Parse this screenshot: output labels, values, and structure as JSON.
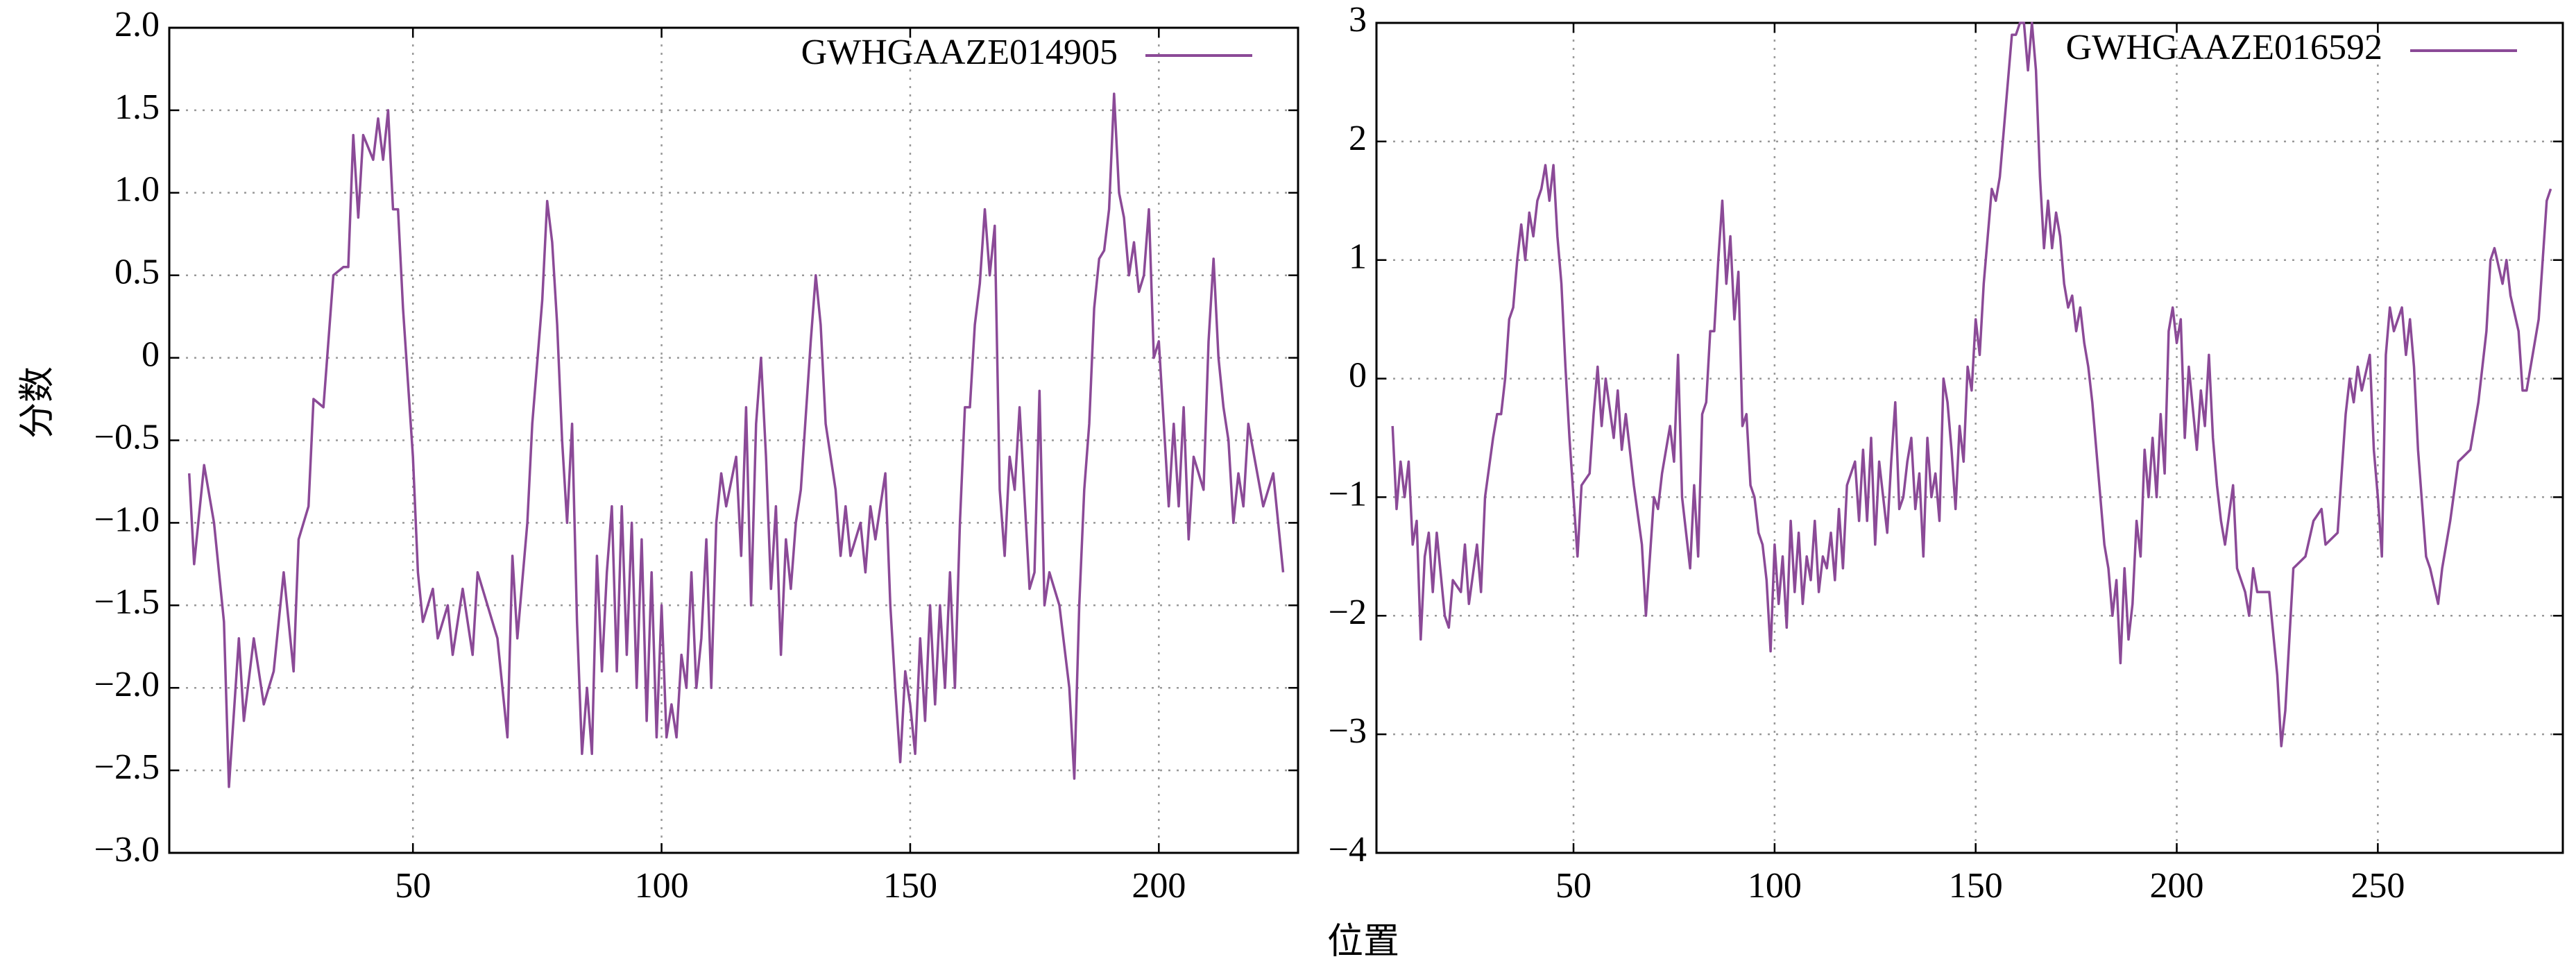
{
  "xlabel": "位置",
  "ylabel": "分数",
  "chart_data": [
    {
      "type": "line",
      "xlim": [
        1,
        228
      ],
      "ylim": [
        -3,
        2
      ],
      "xticks": [
        50,
        100,
        150,
        200
      ],
      "yticks": [
        {
          "value": -3,
          "label": "−3.0"
        },
        {
          "value": -2.5,
          "label": "−2.5"
        },
        {
          "value": -2,
          "label": "−2.0"
        },
        {
          "value": -1.5,
          "label": "−1.5"
        },
        {
          "value": -1,
          "label": "−1.0"
        },
        {
          "value": -0.5,
          "label": "−0.5"
        },
        0,
        0.5,
        {
          "value": 1,
          "label": "1.0"
        },
        1.5,
        {
          "value": 2,
          "label": "2.0"
        }
      ],
      "grid": true,
      "legend": "upper right",
      "x": [
        5,
        6,
        8,
        10,
        12,
        13,
        15,
        16,
        18,
        20,
        22,
        24,
        26,
        27,
        29,
        30,
        32,
        34,
        36,
        37,
        38,
        39,
        40,
        42,
        43,
        44,
        45,
        46,
        47,
        48,
        50,
        51,
        52,
        54,
        55,
        57,
        58,
        60,
        62,
        63,
        65,
        67,
        69,
        70,
        71,
        73,
        74,
        76,
        77,
        78,
        79,
        80,
        81,
        82,
        83,
        84,
        85,
        86,
        87,
        88,
        89,
        90,
        91,
        92,
        93,
        94,
        95,
        96,
        97,
        98,
        99,
        100,
        101,
        102,
        103,
        104,
        105,
        106,
        107,
        108,
        109,
        110,
        111,
        112,
        113,
        115,
        116,
        117,
        118,
        119,
        120,
        121,
        122,
        123,
        124,
        125,
        126,
        127,
        128,
        130,
        131,
        132,
        133,
        135,
        136,
        137,
        138,
        140,
        141,
        142,
        143,
        144,
        145,
        146,
        147,
        148,
        149,
        150,
        151,
        152,
        153,
        154,
        155,
        156,
        157,
        158,
        159,
        160,
        161,
        162,
        163,
        164,
        165,
        166,
        167,
        168,
        169,
        170,
        171,
        172,
        174,
        175,
        176,
        177,
        178,
        180,
        182,
        183,
        184,
        185,
        186,
        187,
        188,
        189,
        190,
        191,
        192,
        193,
        194,
        195,
        196,
        197,
        198,
        199,
        200,
        201,
        202,
        203,
        204,
        205,
        206,
        207,
        209,
        210,
        211,
        212,
        213,
        214,
        215,
        216,
        217,
        218,
        221,
        223,
        225
      ],
      "series": [
        {
          "name": "GWHGAAZE014905",
          "color": "#8b4a97",
          "values": [
            -0.7,
            -1.25,
            -0.65,
            -1.0,
            -1.6,
            -2.6,
            -1.7,
            -2.2,
            -1.7,
            -2.1,
            -1.9,
            -1.3,
            -1.9,
            -1.1,
            -0.9,
            -0.25,
            -0.3,
            0.5,
            0.55,
            0.55,
            1.35,
            0.85,
            1.35,
            1.2,
            1.45,
            1.2,
            1.5,
            0.9,
            0.9,
            0.3,
            -0.6,
            -1.3,
            -1.6,
            -1.4,
            -1.7,
            -1.5,
            -1.8,
            -1.4,
            -1.8,
            -1.3,
            -1.5,
            -1.7,
            -2.3,
            -1.2,
            -1.7,
            -1.0,
            -0.4,
            0.35,
            0.95,
            0.7,
            0.2,
            -0.5,
            -1.0,
            -0.4,
            -1.6,
            -2.4,
            -2.0,
            -2.4,
            -1.2,
            -1.9,
            -1.3,
            -0.9,
            -1.9,
            -0.9,
            -1.8,
            -1.0,
            -2.0,
            -1.1,
            -2.2,
            -1.3,
            -2.3,
            -1.5,
            -2.3,
            -2.1,
            -2.3,
            -1.8,
            -2.0,
            -1.3,
            -2.0,
            -1.7,
            -1.1,
            -2.0,
            -1.0,
            -0.7,
            -0.9,
            -0.6,
            -1.2,
            -0.3,
            -1.5,
            -0.4,
            0.0,
            -0.6,
            -1.4,
            -0.9,
            -1.8,
            -1.1,
            -1.4,
            -1.0,
            -0.8,
            0.1,
            0.5,
            0.2,
            -0.4,
            -0.8,
            -1.2,
            -0.9,
            -1.2,
            -1.0,
            -1.3,
            -0.9,
            -1.1,
            -0.9,
            -0.7,
            -1.5,
            -2.0,
            -2.45,
            -1.9,
            -2.1,
            -2.4,
            -1.7,
            -2.2,
            -1.5,
            -2.1,
            -1.5,
            -2.0,
            -1.3,
            -2.0,
            -1.0,
            -0.3,
            -0.3,
            0.2,
            0.45,
            0.9,
            0.5,
            0.8,
            -0.8,
            -1.2,
            -0.6,
            -0.8,
            -0.3,
            -1.4,
            -1.3,
            -0.2,
            -1.5,
            -1.3,
            -1.5,
            -2.0,
            -2.55,
            -1.5,
            -0.8,
            -0.4,
            0.3,
            0.6,
            0.65,
            0.9,
            1.6,
            1.0,
            0.85,
            0.5,
            0.7,
            0.4,
            0.5,
            0.9,
            0.0,
            0.1,
            -0.4,
            -0.9,
            -0.4,
            -0.9,
            -0.3,
            -1.1,
            -0.6,
            -0.8,
            0.1,
            0.6,
            0.0,
            -0.3,
            -0.5,
            -1.0,
            -0.7,
            -0.9,
            -0.4,
            -0.9,
            -0.7,
            -1.3
          ]
        }
      ]
    },
    {
      "type": "line",
      "xlim": [
        1,
        296
      ],
      "ylim": [
        -4,
        3
      ],
      "xticks": [
        50,
        100,
        150,
        200,
        250
      ],
      "yticks": [
        {
          "value": -4,
          "label": "−4"
        },
        {
          "value": -3,
          "label": "−3"
        },
        {
          "value": -2,
          "label": "−2"
        },
        {
          "value": -1,
          "label": "−1"
        },
        0,
        1,
        2,
        3
      ],
      "grid": true,
      "legend": "upper right",
      "x": [
        5,
        6,
        7,
        8,
        9,
        10,
        11,
        12,
        13,
        14,
        15,
        16,
        18,
        19,
        20,
        22,
        23,
        24,
        26,
        27,
        28,
        30,
        31,
        32,
        33,
        34,
        35,
        36,
        37,
        38,
        39,
        40,
        41,
        42,
        43,
        44,
        45,
        46,
        47,
        48,
        49,
        50,
        51,
        52,
        54,
        55,
        56,
        57,
        58,
        60,
        61,
        62,
        63,
        65,
        67,
        68,
        70,
        71,
        72,
        74,
        75,
        76,
        77,
        78,
        79,
        80,
        81,
        82,
        83,
        84,
        85,
        86,
        87,
        88,
        89,
        90,
        91,
        92,
        93,
        94,
        95,
        96,
        97,
        98,
        99,
        100,
        101,
        102,
        103,
        104,
        105,
        106,
        107,
        108,
        109,
        110,
        111,
        112,
        113,
        114,
        115,
        116,
        117,
        118,
        120,
        121,
        122,
        123,
        124,
        125,
        126,
        127,
        128,
        129,
        130,
        131,
        132,
        133,
        134,
        135,
        136,
        137,
        138,
        139,
        140,
        141,
        142,
        143,
        144,
        145,
        146,
        147,
        148,
        149,
        150,
        151,
        152,
        153,
        154,
        155,
        156,
        157,
        158,
        159,
        160,
        161,
        162,
        163,
        164,
        165,
        166,
        167,
        168,
        169,
        170,
        171,
        172,
        173,
        174,
        175,
        176,
        177,
        178,
        179,
        180,
        181,
        182,
        183,
        184,
        185,
        186,
        187,
        188,
        189,
        190,
        191,
        192,
        193,
        194,
        195,
        196,
        197,
        198,
        199,
        200,
        201,
        202,
        203,
        205,
        206,
        207,
        208,
        209,
        210,
        211,
        212,
        214,
        215,
        216,
        217,
        218,
        219,
        220,
        223,
        225,
        226,
        227,
        228,
        229,
        232,
        234,
        236,
        237,
        240,
        241,
        242,
        243,
        244,
        245,
        246,
        248,
        249,
        250,
        251,
        252,
        253,
        254,
        256,
        257,
        258,
        259,
        260,
        262,
        263,
        265,
        266,
        268,
        270,
        273,
        275,
        277,
        278,
        279,
        281,
        282,
        283,
        285,
        286,
        287,
        290,
        291,
        292,
        293
      ],
      "series": [
        {
          "name": "GWHGAAZE016592",
          "color": "#8b4a97",
          "values": [
            -0.4,
            -1.1,
            -0.7,
            -1.0,
            -0.7,
            -1.4,
            -1.2,
            -2.2,
            -1.5,
            -1.3,
            -1.8,
            -1.3,
            -2.0,
            -2.1,
            -1.7,
            -1.8,
            -1.4,
            -1.9,
            -1.4,
            -1.8,
            -1.0,
            -0.5,
            -0.3,
            -0.3,
            0.0,
            0.5,
            0.6,
            1.0,
            1.3,
            1.0,
            1.4,
            1.2,
            1.5,
            1.6,
            1.8,
            1.5,
            1.8,
            1.2,
            0.8,
            0.1,
            -0.5,
            -1.0,
            -1.5,
            -0.9,
            -0.8,
            -0.3,
            0.1,
            -0.4,
            0.0,
            -0.5,
            -0.1,
            -0.6,
            -0.3,
            -0.9,
            -1.4,
            -2.0,
            -1.0,
            -1.1,
            -0.8,
            -0.4,
            -0.7,
            0.2,
            -1.0,
            -1.3,
            -1.6,
            -0.9,
            -1.5,
            -0.3,
            -0.2,
            0.4,
            0.4,
            1.0,
            1.5,
            0.8,
            1.2,
            0.5,
            0.9,
            -0.4,
            -0.3,
            -0.9,
            -1.0,
            -1.3,
            -1.4,
            -1.7,
            -2.3,
            -1.4,
            -1.9,
            -1.5,
            -2.1,
            -1.2,
            -1.8,
            -1.3,
            -1.9,
            -1.5,
            -1.7,
            -1.2,
            -1.8,
            -1.5,
            -1.6,
            -1.3,
            -1.7,
            -1.1,
            -1.6,
            -0.9,
            -0.7,
            -1.2,
            -0.6,
            -1.2,
            -0.5,
            -1.4,
            -0.7,
            -1.0,
            -1.3,
            -0.7,
            -0.2,
            -1.1,
            -1.0,
            -0.7,
            -0.5,
            -1.1,
            -0.8,
            -1.5,
            -0.5,
            -1.0,
            -0.8,
            -1.2,
            0.0,
            -0.2,
            -0.6,
            -1.1,
            -0.4,
            -0.7,
            0.1,
            -0.1,
            0.5,
            0.2,
            0.8,
            1.2,
            1.6,
            1.5,
            1.7,
            2.1,
            2.5,
            2.9,
            2.9,
            3.0,
            3.0,
            2.6,
            3.0,
            2.6,
            1.7,
            1.1,
            1.5,
            1.1,
            1.4,
            1.2,
            0.8,
            0.6,
            0.7,
            0.4,
            0.6,
            0.3,
            0.1,
            -0.2,
            -0.6,
            -1.0,
            -1.4,
            -1.6,
            -2.0,
            -1.7,
            -2.4,
            -1.6,
            -2.2,
            -1.9,
            -1.2,
            -1.5,
            -0.6,
            -1.0,
            -0.5,
            -1.0,
            -0.3,
            -0.8,
            0.4,
            0.6,
            0.3,
            0.5,
            -0.5,
            0.1,
            -0.6,
            -0.1,
            -0.4,
            0.2,
            -0.5,
            -0.9,
            -1.2,
            -1.4,
            -0.9,
            -1.6,
            -1.7,
            -1.8,
            -2.0,
            -1.6,
            -1.8,
            -1.8,
            -2.5,
            -3.1,
            -2.8,
            -2.2,
            -1.6,
            -1.5,
            -1.2,
            -1.1,
            -1.4,
            -1.3,
            -0.8,
            -0.3,
            0.0,
            -0.2,
            0.1,
            -0.1,
            0.2,
            -0.6,
            -1.0,
            -1.5,
            0.2,
            0.6,
            0.4,
            0.6,
            0.2,
            0.5,
            0.1,
            -0.6,
            -1.5,
            -1.6,
            -1.9,
            -1.6,
            -1.2,
            -0.7,
            -0.6,
            -0.2,
            0.4,
            1.0,
            1.1,
            0.8,
            1.0,
            0.7,
            0.4,
            -0.1,
            -0.1,
            0.5,
            1.0,
            1.5,
            1.6
          ]
        }
      ]
    }
  ]
}
